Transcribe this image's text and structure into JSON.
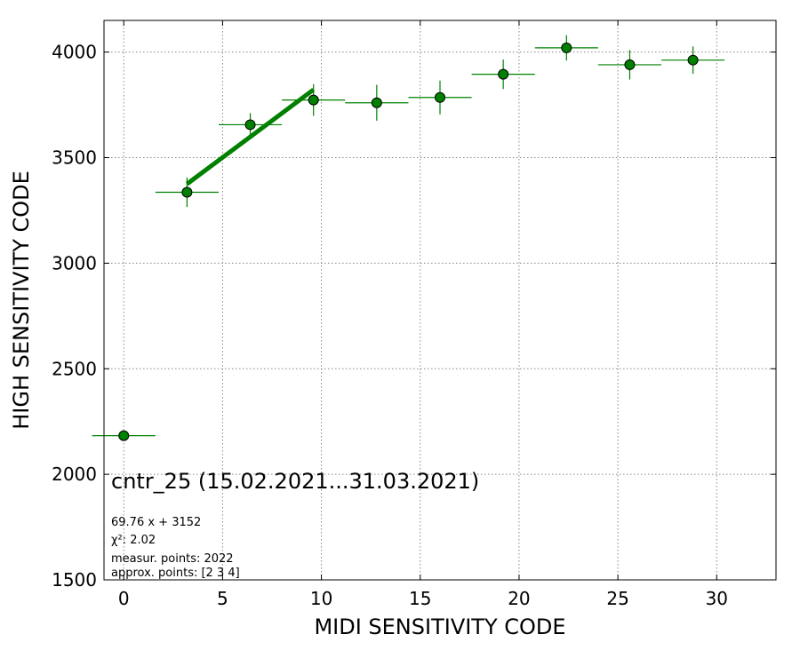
{
  "chart_data": {
    "type": "scatter",
    "xlabel": "MIDI SENSITIVITY CODE",
    "ylabel": "HIGH SENSITIVITY CODE",
    "xlim": [
      -1,
      33
    ],
    "ylim": [
      1500,
      4150
    ],
    "xticks": [
      0,
      5,
      10,
      15,
      20,
      25,
      30
    ],
    "yticks": [
      1500,
      2000,
      2500,
      3000,
      3500,
      4000
    ],
    "grid": true,
    "marker_color": "#008000",
    "fit_color": "#008000",
    "points": [
      {
        "x": 0.0,
        "y": 2183,
        "xerr": 1.6,
        "yerr": 0
      },
      {
        "x": 3.2,
        "y": 3336,
        "xerr": 1.6,
        "yerr": 70
      },
      {
        "x": 6.4,
        "y": 3656,
        "xerr": 1.6,
        "yerr": 55
      },
      {
        "x": 9.6,
        "y": 3773,
        "xerr": 1.6,
        "yerr": 75
      },
      {
        "x": 12.8,
        "y": 3760,
        "xerr": 1.6,
        "yerr": 85
      },
      {
        "x": 16.0,
        "y": 3785,
        "xerr": 1.6,
        "yerr": 80
      },
      {
        "x": 19.2,
        "y": 3895,
        "xerr": 1.6,
        "yerr": 70
      },
      {
        "x": 22.4,
        "y": 4020,
        "xerr": 1.6,
        "yerr": 60
      },
      {
        "x": 25.6,
        "y": 3940,
        "xerr": 1.6,
        "yerr": 70
      },
      {
        "x": 28.8,
        "y": 3962,
        "xerr": 1.6,
        "yerr": 65
      }
    ],
    "fit_line": {
      "slope": 69.76,
      "intercept": 3152,
      "x_range": [
        3.2,
        9.6
      ]
    },
    "annotation_title": "cntr_25 (15.02.2021...31.03.2021)",
    "annotation_lines": [
      "69.76 x + 3152",
      "χ²: 2.02",
      "measur. points: 2022",
      "approx. points: [2 3 4]"
    ]
  }
}
